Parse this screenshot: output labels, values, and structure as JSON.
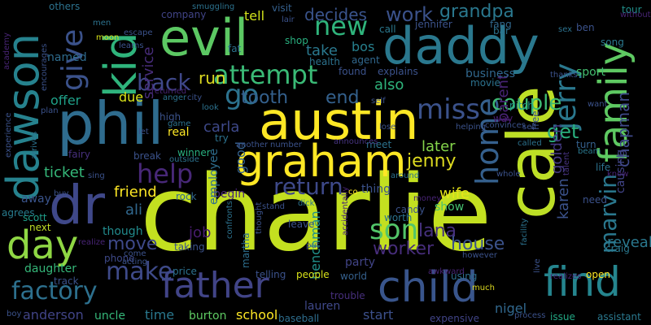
{
  "words": [
    {
      "text": "charlie",
      "color": "#c3e020"
    },
    {
      "text": "austin",
      "color": "#fde725"
    },
    {
      "text": "evil",
      "color": "#5cc863"
    },
    {
      "text": "daddy",
      "color": "#2a788e"
    },
    {
      "text": "phil",
      "color": "#2f6c8e"
    },
    {
      "text": "kid",
      "color": "#2fb47c"
    },
    {
      "text": "dawson",
      "color": "#26828e"
    },
    {
      "text": "cale",
      "color": "#bddf26"
    },
    {
      "text": "graham",
      "color": "#fde725"
    },
    {
      "text": "family",
      "color": "#5ec962"
    },
    {
      "text": "dr",
      "color": "#3f4889"
    },
    {
      "text": "father",
      "color": "#414487"
    },
    {
      "text": "child",
      "color": "#39558c"
    },
    {
      "text": "find",
      "color": "#25858e"
    },
    {
      "text": "day",
      "color": "#8fd744"
    },
    {
      "text": "factory",
      "color": "#2d708e"
    },
    {
      "text": "attempt",
      "color": "#3aba76"
    },
    {
      "text": "jerry",
      "color": "#2a788e"
    },
    {
      "text": "miss",
      "color": "#3b528b"
    },
    {
      "text": "home",
      "color": "#35608d"
    },
    {
      "text": "give",
      "color": "#3b528b"
    },
    {
      "text": "back",
      "color": "#3f4889"
    },
    {
      "text": "new",
      "color": "#2fb47c"
    },
    {
      "text": "go",
      "color": "#2c728e"
    },
    {
      "text": "return",
      "color": "#3e4989"
    },
    {
      "text": "son",
      "color": "#52c569"
    },
    {
      "text": "make",
      "color": "#3e4a89"
    },
    {
      "text": "help",
      "color": "#482878"
    },
    {
      "text": "work",
      "color": "#3b528b"
    },
    {
      "text": "grandpa",
      "color": "#2a788e"
    },
    {
      "text": "couple",
      "color": "#3fbc73"
    },
    {
      "text": "decides",
      "color": "#3a548c"
    },
    {
      "text": "tooth",
      "color": "#34608d"
    },
    {
      "text": "end",
      "color": "#34618d"
    },
    {
      "text": "get",
      "color": "#2ab07f"
    },
    {
      "text": "marvin",
      "color": "#2a788e"
    },
    {
      "text": "chapman",
      "color": "#3e4989"
    },
    {
      "text": "jenny",
      "color": "#ddda20"
    },
    {
      "text": "later",
      "color": "#84d44b"
    },
    {
      "text": "lana",
      "color": "#46317e"
    },
    {
      "text": "worker",
      "color": "#472d7b"
    },
    {
      "text": "house",
      "color": "#3b528b"
    },
    {
      "text": "move",
      "color": "#3e4989"
    },
    {
      "text": "ticket",
      "color": "#35b779"
    },
    {
      "text": "friend",
      "color": "#fde725"
    },
    {
      "text": "ali",
      "color": "#31688e"
    },
    {
      "text": "wife",
      "color": "#e5e419"
    },
    {
      "text": "parent",
      "color": "#482475"
    },
    {
      "text": "golden",
      "color": "#443a83"
    },
    {
      "text": "karen",
      "color": "#3b528b"
    },
    {
      "text": "reveals",
      "color": "#2a788e"
    },
    {
      "text": "causing",
      "color": "#414487"
    },
    {
      "text": "run",
      "color": "#ddda20"
    },
    {
      "text": "tell",
      "color": "#d2e21b"
    },
    {
      "text": "service",
      "color": "#472c7a"
    },
    {
      "text": "take",
      "color": "#2a788e"
    },
    {
      "text": "bos",
      "color": "#27808e"
    },
    {
      "text": "also",
      "color": "#2fb47c"
    },
    {
      "text": "offer",
      "color": "#1fa088"
    },
    {
      "text": "due",
      "color": "#d8e219"
    },
    {
      "text": "carla",
      "color": "#3e4989"
    },
    {
      "text": "good",
      "color": "#34618d"
    },
    {
      "text": "job",
      "color": "#481d6f"
    },
    {
      "text": "henchman",
      "color": "#21918c"
    },
    {
      "text": "anderson",
      "color": "#414487"
    },
    {
      "text": "burton",
      "color": "#5ec962"
    },
    {
      "text": "school",
      "color": "#fde725"
    },
    {
      "text": "lauren",
      "color": "#3f4889"
    },
    {
      "text": "start",
      "color": "#3c508b"
    },
    {
      "text": "time",
      "color": "#2a788e"
    },
    {
      "text": "uncle",
      "color": "#35b779"
    },
    {
      "text": "sport",
      "color": "#44bf70"
    },
    {
      "text": "business",
      "color": "#31688e"
    },
    {
      "text": "daughter",
      "color": "#35b779"
    },
    {
      "text": "away",
      "color": "#3a548c"
    },
    {
      "text": "agrees",
      "color": "#287c8e"
    },
    {
      "text": "phone",
      "color": "#3e4989"
    },
    {
      "text": "price",
      "color": "#2c718e"
    },
    {
      "text": "though",
      "color": "#228b8d"
    },
    {
      "text": "craig",
      "color": "#2a788e"
    },
    {
      "text": "show",
      "color": "#46c06f"
    },
    {
      "text": "thing",
      "color": "#3b528b"
    },
    {
      "text": "candy",
      "color": "#3b528b"
    },
    {
      "text": "begin",
      "color": "#482677"
    },
    {
      "text": "employee",
      "color": "#2e6e8e"
    },
    {
      "text": "martha",
      "color": "#2e6f8e"
    },
    {
      "text": "party",
      "color": "#414487"
    },
    {
      "text": "people",
      "color": "#d8e219"
    },
    {
      "text": "telling",
      "color": "#3b528b"
    },
    {
      "text": "trouble",
      "color": "#472f7d"
    },
    {
      "text": "world",
      "color": "#35608d"
    },
    {
      "text": "using",
      "color": "#2e6e8e"
    },
    {
      "text": "nigel",
      "color": "#31688e"
    },
    {
      "text": "issue",
      "color": "#22a884"
    },
    {
      "text": "expensive",
      "color": "#414487"
    },
    {
      "text": "assistant",
      "color": "#2a788e"
    },
    {
      "text": "baseball",
      "color": "#2e6e8e"
    },
    {
      "text": "track",
      "color": "#3b528b"
    },
    {
      "text": "next",
      "color": "#c0df25"
    },
    {
      "text": "scott",
      "color": "#1f9e89"
    },
    {
      "text": "named",
      "color": "#2f6c8e"
    },
    {
      "text": "others",
      "color": "#2c728e"
    },
    {
      "text": "company",
      "color": "#414487"
    },
    {
      "text": "visit",
      "color": "#35608d"
    },
    {
      "text": "shop",
      "color": "#29af7f"
    },
    {
      "text": "fat",
      "color": "#2c728e"
    },
    {
      "text": "health",
      "color": "#2c728e"
    },
    {
      "text": "agent",
      "color": "#31688e"
    },
    {
      "text": "found",
      "color": "#3b528b"
    },
    {
      "text": "explains",
      "color": "#3b528b"
    },
    {
      "text": "movie",
      "color": "#2c728e"
    },
    {
      "text": "jennifer",
      "color": "#3b528b"
    },
    {
      "text": "fang",
      "color": "#31688e"
    },
    {
      "text": "call",
      "color": "#2a788e"
    },
    {
      "text": "ben",
      "color": "#3b528b"
    },
    {
      "text": "song",
      "color": "#2a788e"
    },
    {
      "text": "tour",
      "color": "#21918c"
    },
    {
      "text": "without",
      "color": "#482475"
    },
    {
      "text": "pitch",
      "color": "#1f988b"
    },
    {
      "text": "way",
      "color": "#481b6d"
    },
    {
      "text": "free",
      "color": "#3b528b"
    },
    {
      "text": "called",
      "color": "#2c728e"
    },
    {
      "text": "turn",
      "color": "#35608d"
    },
    {
      "text": "beam",
      "color": "#2a788e"
    },
    {
      "text": "life",
      "color": "#2c728e"
    },
    {
      "text": "know",
      "color": "#482475"
    },
    {
      "text": "talent",
      "color": "#46337f"
    },
    {
      "text": "whole",
      "color": "#3b528b"
    },
    {
      "text": "meet",
      "color": "#2c728e"
    },
    {
      "text": "announces",
      "color": "#46337f"
    },
    {
      "text": "around",
      "color": "#2c728e"
    },
    {
      "text": "another",
      "color": "#3b528b"
    },
    {
      "text": "number",
      "color": "#3b528b"
    },
    {
      "text": "try",
      "color": "#2c728e"
    },
    {
      "text": "winner",
      "color": "#29af7f"
    },
    {
      "text": "break",
      "color": "#3b528b"
    },
    {
      "text": "outside",
      "color": "#2c728e"
    },
    {
      "text": "rock",
      "color": "#31688e"
    },
    {
      "text": "fairy",
      "color": "#472f7d"
    },
    {
      "text": "arrives",
      "color": "#2c728e"
    },
    {
      "text": "realize",
      "color": "#482475"
    },
    {
      "text": "come",
      "color": "#3b528b"
    },
    {
      "text": "acting",
      "color": "#3b528b"
    },
    {
      "text": "taking",
      "color": "#3b528b"
    },
    {
      "text": "confronts",
      "color": "#2c728e"
    },
    {
      "text": "thought",
      "color": "#3b528b"
    },
    {
      "text": "accidentally",
      "color": "#482475"
    },
    {
      "text": "leave",
      "color": "#3b528b"
    },
    {
      "text": "worth",
      "color": "#2c728e"
    },
    {
      "text": "put",
      "color": "#3b528b"
    },
    {
      "text": "dick",
      "color": "#2c728e"
    },
    {
      "text": "stand",
      "color": "#3b528b"
    },
    {
      "text": "money",
      "color": "#482475"
    },
    {
      "text": "awkward",
      "color": "#482475"
    },
    {
      "text": "however",
      "color": "#3b528b"
    },
    {
      "text": "facility",
      "color": "#2c728e"
    },
    {
      "text": "live",
      "color": "#3b528b"
    },
    {
      "text": "realizes",
      "color": "#482475"
    },
    {
      "text": "much",
      "color": "#ddda20"
    },
    {
      "text": "open",
      "color": "#fde725"
    },
    {
      "text": "need",
      "color": "#3b528b"
    },
    {
      "text": "process",
      "color": "#3b528b"
    },
    {
      "text": "high",
      "color": "#3b528b"
    },
    {
      "text": "game",
      "color": "#2c728e"
    },
    {
      "text": "real",
      "color": "#fde725"
    },
    {
      "text": "anger",
      "color": "#2c728e"
    },
    {
      "text": "city",
      "color": "#3b528b"
    },
    {
      "text": "look",
      "color": "#2c728e"
    },
    {
      "text": "returned",
      "color": "#482475"
    },
    {
      "text": "let",
      "color": "#3b528b"
    },
    {
      "text": "plan",
      "color": "#3b528b"
    },
    {
      "text": "encourages",
      "color": "#3b528b"
    },
    {
      "text": "experience",
      "color": "#3b528b"
    },
    {
      "text": "academy",
      "color": "#482475"
    },
    {
      "text": "men",
      "color": "#2c728e"
    },
    {
      "text": "moon",
      "color": "#d8e219"
    },
    {
      "text": "learns",
      "color": "#3b528b"
    },
    {
      "text": "escape",
      "color": "#3b528b"
    },
    {
      "text": "smuggling",
      "color": "#2c728e"
    },
    {
      "text": "lair",
      "color": "#3b528b"
    },
    {
      "text": "self",
      "color": "#3b528b"
    },
    {
      "text": "lose",
      "color": "#3b528b"
    },
    {
      "text": "helping",
      "color": "#3b528b"
    },
    {
      "text": "convinces",
      "color": "#3b528b"
    },
    {
      "text": "sell",
      "color": "#3b528b"
    },
    {
      "text": "thanks",
      "color": "#3b528b"
    },
    {
      "text": "sex",
      "color": "#2c728e"
    },
    {
      "text": "bar",
      "color": "#2c728e"
    },
    {
      "text": "want",
      "color": "#3b528b"
    },
    {
      "text": "sing",
      "color": "#3b528b"
    },
    {
      "text": "buy",
      "color": "#3b528b"
    },
    {
      "text": "boy",
      "color": "#3b528b"
    },
    {
      "text": "co",
      "color": "#fde725"
    }
  ]
}
